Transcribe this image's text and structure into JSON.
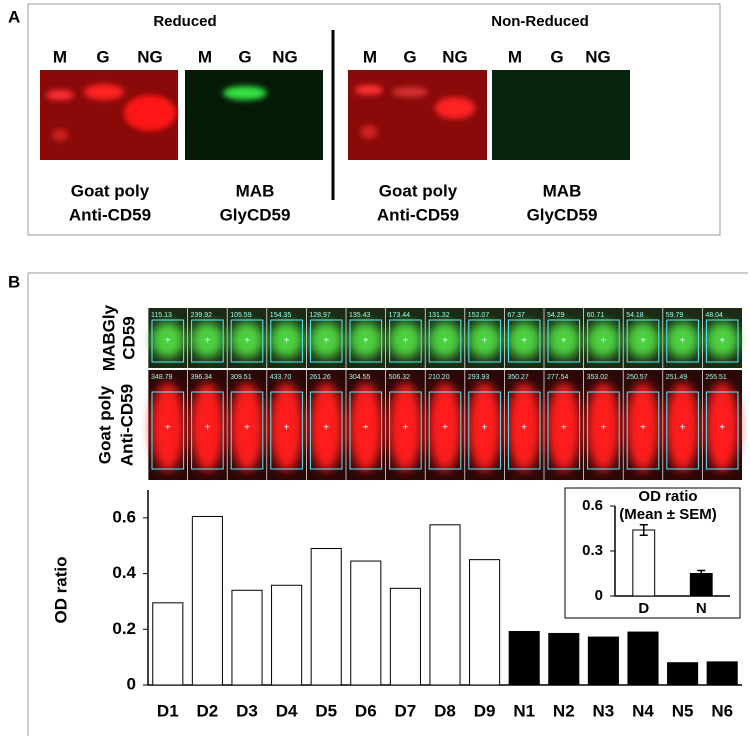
{
  "panel_a": {
    "label": "A",
    "groups": [
      {
        "title": "Reduced",
        "lanes": [
          "M",
          "G",
          "NG",
          "M",
          "G",
          "NG"
        ],
        "captions": [
          "Goat poly",
          "Anti-CD59",
          "MAB",
          "GlyCD59"
        ]
      },
      {
        "title": "Non-Reduced",
        "lanes": [
          "M",
          "G",
          "NG",
          "M",
          "G",
          "NG"
        ],
        "captions": [
          "Goat poly",
          "Anti-CD59",
          "MAB",
          "GlyCD59"
        ]
      }
    ]
  },
  "panel_b": {
    "label": "B",
    "rows": [
      {
        "label": [
          "MABGly",
          "CD59"
        ],
        "values": [
          "115.13",
          "239.92",
          "105.59",
          "154.35",
          "128.97",
          "135.43",
          "173.44",
          "131.32",
          "152.07",
          "67.37",
          "54.29",
          "60.71",
          "54.18",
          "59.79",
          "48.04"
        ]
      },
      {
        "label": [
          "Goat poly",
          "Anti-CD59"
        ],
        "values": [
          "348.79",
          "396.34",
          "309.51",
          "433.70",
          "261.26",
          "304.55",
          "506.32",
          "210.20",
          "293.93",
          "350.27",
          "277.54",
          "353.02",
          "250.57",
          "251.49",
          "255.51"
        ]
      }
    ]
  },
  "chart_data": [
    {
      "type": "bar",
      "ylabel": "OD ratio",
      "categories": [
        "D1",
        "D2",
        "D3",
        "D4",
        "D5",
        "D6",
        "D7",
        "D8",
        "D9",
        "N1",
        "N2",
        "N3",
        "N4",
        "N5",
        "N6"
      ],
      "values": [
        0.295,
        0.605,
        0.34,
        0.358,
        0.49,
        0.445,
        0.347,
        0.575,
        0.45,
        0.192,
        0.185,
        0.172,
        0.19,
        0.08,
        0.083
      ],
      "colors": [
        "#ffffff",
        "#ffffff",
        "#ffffff",
        "#ffffff",
        "#ffffff",
        "#ffffff",
        "#ffffff",
        "#ffffff",
        "#ffffff",
        "#000000",
        "#000000",
        "#000000",
        "#000000",
        "#000000",
        "#000000"
      ],
      "ylim": [
        0,
        0.7
      ],
      "yticks": [
        0,
        0.2,
        0.4,
        0.6
      ]
    },
    {
      "type": "bar",
      "title": "OD ratio",
      "subtitle": "(Mean ± SEM)",
      "categories": [
        "D",
        "N"
      ],
      "values": [
        0.44,
        0.15
      ],
      "errors": [
        0.035,
        0.02
      ],
      "colors": [
        "#ffffff",
        "#000000"
      ],
      "ylim": [
        0,
        0.6
      ],
      "yticks": [
        0,
        0.3,
        0.6
      ]
    }
  ]
}
